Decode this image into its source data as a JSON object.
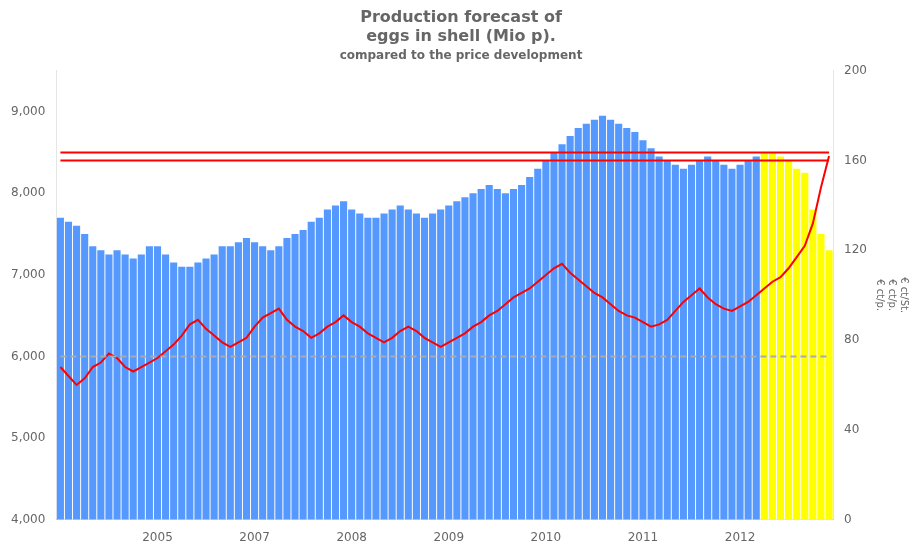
{
  "chart_data": {
    "type": "bar",
    "title": [
      "Production forecast of",
      "eggs in shell (Mio p)."
    ],
    "subtitle": "compared to the price development",
    "y2label": "€ ct/St.\n€ ct/p.\n€ ct/p.",
    "categories": [
      null,
      null,
      null,
      null,
      null,
      null,
      null,
      null,
      null,
      null,
      null,
      null,
      "2005",
      null,
      null,
      null,
      null,
      null,
      null,
      null,
      null,
      null,
      null,
      null,
      "2007",
      null,
      null,
      null,
      null,
      null,
      null,
      null,
      null,
      null,
      null,
      null,
      "2008",
      null,
      null,
      null,
      null,
      null,
      null,
      null,
      null,
      null,
      null,
      null,
      "2009",
      null,
      null,
      null,
      null,
      null,
      null,
      null,
      null,
      null,
      null,
      null,
      "2010",
      null,
      null,
      null,
      null,
      null,
      null,
      null,
      null,
      null,
      null,
      null,
      "2011",
      null,
      null,
      null,
      null,
      null,
      null,
      null,
      null,
      null,
      null,
      null,
      "2012",
      null,
      null,
      null,
      null,
      null,
      null,
      null,
      null,
      null,
      null,
      null
    ],
    "ylim": [
      4000,
      9500
    ],
    "yticks": [
      {
        "value": 4000,
        "label": "4,000"
      },
      {
        "value": 5000,
        "label": "5,000"
      },
      {
        "value": 6000,
        "label": "6,000"
      },
      {
        "value": 7000,
        "label": "7,000"
      },
      {
        "value": 8000,
        "label": "8,000"
      },
      {
        "value": 9000,
        "label": "9,000"
      }
    ],
    "y2lim": [
      0,
      200
    ],
    "y2ticks": [
      0,
      40,
      80,
      120,
      160,
      200
    ],
    "grid": false,
    "series": [
      {
        "type": "bar",
        "values": [
          7700,
          7650,
          7600,
          7500,
          7350,
          7300,
          7250,
          7300,
          7250,
          7200,
          7250,
          7350,
          7350,
          7250,
          7150,
          7100,
          7100,
          7150,
          7200,
          7250,
          7350,
          7350,
          7400,
          7450,
          7400,
          7350,
          7300,
          7350,
          7450,
          7500,
          7550,
          7650,
          7700,
          7800,
          7850,
          7900,
          7800,
          7750,
          7700,
          7700,
          7750,
          7800,
          7850,
          7800,
          7750,
          7700,
          7750,
          7800,
          7850,
          7900,
          7950,
          8000,
          8050,
          8100,
          8050,
          8000,
          8050,
          8100,
          8200,
          8300,
          8400,
          8500,
          8600,
          8700,
          8800,
          8850,
          8900,
          8950,
          8900,
          8850,
          8800,
          8750,
          8650,
          8550,
          8450,
          8400,
          8350,
          8300,
          8350,
          8400,
          8450,
          8400,
          8350,
          8300,
          8350,
          8400,
          8450,
          8500,
          8500,
          8450,
          8400,
          8300,
          8250,
          7800,
          7500,
          7300
        ],
        "colors": [
          "#5599FF",
          "#5599FF",
          "#5599FF",
          "#5599FF",
          "#5599FF",
          "#5599FF",
          "#5599FF",
          "#5599FF",
          "#5599FF",
          "#5599FF",
          "#5599FF",
          "#5599FF",
          "#5599FF",
          "#5599FF",
          "#5599FF",
          "#5599FF",
          "#5599FF",
          "#5599FF",
          "#5599FF",
          "#5599FF",
          "#5599FF",
          "#5599FF",
          "#5599FF",
          "#5599FF",
          "#5599FF",
          "#5599FF",
          "#5599FF",
          "#5599FF",
          "#5599FF",
          "#5599FF",
          "#5599FF",
          "#5599FF",
          "#5599FF",
          "#5599FF",
          "#5599FF",
          "#5599FF",
          "#5599FF",
          "#5599FF",
          "#5599FF",
          "#5599FF",
          "#5599FF",
          "#5599FF",
          "#5599FF",
          "#5599FF",
          "#5599FF",
          "#5599FF",
          "#5599FF",
          "#5599FF",
          "#5599FF",
          "#5599FF",
          "#5599FF",
          "#5599FF",
          "#5599FF",
          "#5599FF",
          "#5599FF",
          "#5599FF",
          "#5599FF",
          "#5599FF",
          "#5599FF",
          "#5599FF",
          "#5599FF",
          "#5599FF",
          "#5599FF",
          "#5599FF",
          "#5599FF",
          "#5599FF",
          "#5599FF",
          "#5599FF",
          "#5599FF",
          "#5599FF",
          "#5599FF",
          "#5599FF",
          "#5599FF",
          "#5599FF",
          "#5599FF",
          "#5599FF",
          "#5599FF",
          "#5599FF",
          "#5599FF",
          "#5599FF",
          "#5599FF",
          "#5599FF",
          "#5599FF",
          "#5599FF",
          "#5599FF",
          "#5599FF",
          "#5599FF",
          "#FFFF00",
          "#FFFF00",
          "#FFFF00",
          "#FFFF00",
          "#FFFF00",
          "#FFFF00",
          "#FFFF00",
          "#FFFF00",
          "#FFFF00"
        ]
      },
      {
        "type": "line",
        "color": "#FF0000",
        "line_style": "solid",
        "marker": "none",
        "values": [
          8500,
          8500,
          8500,
          8500,
          8500,
          8500,
          8500,
          8500,
          8500,
          8500,
          8500,
          8500,
          8500,
          8500,
          8500,
          8500,
          8500,
          8500,
          8500,
          8500,
          8500,
          8500,
          8500,
          8500,
          8500,
          8500,
          8500,
          8500,
          8500,
          8500,
          8500,
          8500,
          8500,
          8500,
          8500,
          8500,
          8500,
          8500,
          8500,
          8500,
          8500,
          8500,
          8500,
          8500,
          8500,
          8500,
          8500,
          8500,
          8500,
          8500,
          8500,
          8500,
          8500,
          8500,
          8500,
          8500,
          8500,
          8500,
          8500,
          8500,
          8500,
          8500,
          8500,
          8500,
          8500,
          8500,
          8500,
          8500,
          8500,
          8500,
          8500,
          8500,
          8500,
          8500,
          8500,
          8500,
          8500,
          8500,
          8500,
          8500,
          8500,
          8500,
          8500,
          8500,
          8500,
          8500,
          8500,
          8500,
          8500,
          8500,
          8500,
          8500,
          8500,
          8500,
          8500,
          8500
        ]
      },
      {
        "type": "line",
        "color": "#AAAAAA",
        "line_style": "dashed",
        "marker": "none",
        "values": [
          6000,
          6000,
          6000,
          6000,
          6000,
          6000,
          6000,
          6000,
          6000,
          6000,
          6000,
          6000,
          6000,
          6000,
          6000,
          6000,
          6000,
          6000,
          6000,
          6000,
          6000,
          6000,
          6000,
          6000,
          6000,
          6000,
          6000,
          6000,
          6000,
          6000,
          6000,
          6000,
          6000,
          6000,
          6000,
          6000,
          6000,
          6000,
          6000,
          6000,
          6000,
          6000,
          6000,
          6000,
          6000,
          6000,
          6000,
          6000,
          6000,
          6000,
          6000,
          6000,
          6000,
          6000,
          6000,
          6000,
          6000,
          6000,
          6000,
          6000,
          6000,
          6000,
          6000,
          6000,
          6000,
          6000,
          6000,
          6000,
          6000,
          6000,
          6000,
          6000,
          6000,
          6000,
          6000,
          6000,
          6000,
          6000,
          6000,
          6000,
          6000,
          6000,
          6000,
          6000,
          6000,
          6000,
          6000,
          6000,
          6000,
          6000,
          6000,
          6000,
          6000,
          6000,
          6000,
          6000
        ]
      },
      {
        "type": "line",
        "color": "#FF0000",
        "line_style": "solid",
        "marker": "none",
        "axis": "y2",
        "values": [
          68,
          64,
          60,
          63,
          68,
          70,
          74,
          72,
          68,
          66,
          68,
          70,
          72,
          75,
          78,
          82,
          87,
          89,
          85,
          82,
          79,
          77,
          79,
          81,
          86,
          90,
          92,
          94,
          89,
          86,
          84,
          81,
          83,
          86,
          88,
          91,
          88,
          86,
          83,
          81,
          79,
          81,
          84,
          86,
          84,
          81,
          79,
          77,
          79,
          81,
          83,
          86,
          88,
          91,
          93,
          96,
          99,
          101,
          103,
          106,
          109,
          112,
          114,
          110,
          107,
          104,
          101,
          99,
          96,
          93,
          91,
          90,
          88,
          86,
          87,
          89,
          93,
          97,
          100,
          103,
          99,
          96,
          94,
          93,
          95,
          97,
          100,
          103,
          106,
          108,
          112,
          117,
          122,
          132,
          148,
          162
        ]
      },
      {
        "type": "line",
        "color": "#FF0000",
        "line_style": "solid",
        "marker": "none",
        "axis": "y2",
        "values": [
          160,
          160,
          160,
          160,
          160,
          160,
          160,
          160,
          160,
          160,
          160,
          160,
          160,
          160,
          160,
          160,
          160,
          160,
          160,
          160,
          160,
          160,
          160,
          160,
          160,
          160,
          160,
          160,
          160,
          160,
          160,
          160,
          160,
          160,
          160,
          160,
          160,
          160,
          160,
          160,
          160,
          160,
          160,
          160,
          160,
          160,
          160,
          160,
          160,
          160,
          160,
          160,
          160,
          160,
          160,
          160,
          160,
          160,
          160,
          160,
          160,
          160,
          160,
          160,
          160,
          160,
          160,
          160,
          160,
          160,
          160,
          160,
          160,
          160,
          160,
          160,
          160,
          160,
          160,
          160,
          160,
          160,
          160,
          160,
          160,
          160,
          160,
          160,
          160,
          160,
          160,
          160,
          160,
          160,
          160,
          160
        ]
      }
    ]
  }
}
